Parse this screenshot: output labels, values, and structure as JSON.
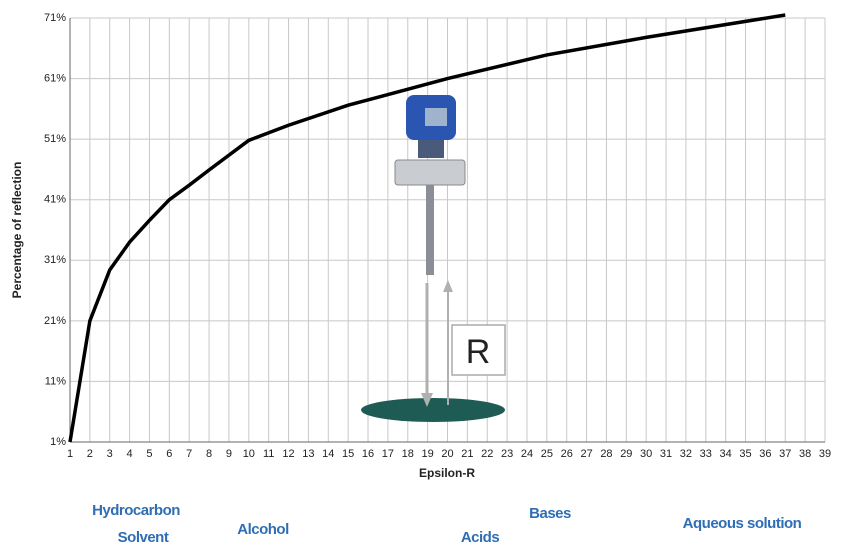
{
  "chart_data": {
    "type": "line",
    "x_label": "Epsilon-R",
    "y_label": "Percentage of reflection",
    "x": [
      1,
      2,
      3,
      4,
      5,
      6,
      7,
      8,
      10,
      12,
      15,
      20,
      25,
      30,
      37
    ],
    "series": [
      {
        "color": "#000000",
        "values": [
          1,
          21,
          29.4,
          34,
          37.6,
          41,
          43.4,
          45.9,
          50.8,
          53.3,
          56.6,
          61,
          64.9,
          67.8,
          71.5
        ]
      }
    ],
    "xlim": [
      1,
      39
    ],
    "xticks": [
      1,
      2,
      3,
      4,
      5,
      6,
      7,
      8,
      9,
      10,
      11,
      12,
      13,
      14,
      15,
      16,
      17,
      18,
      19,
      20,
      21,
      22,
      23,
      24,
      25,
      26,
      27,
      28,
      29,
      30,
      31,
      32,
      33,
      34,
      35,
      36,
      37,
      38,
      39
    ],
    "ylim": [
      1,
      71
    ],
    "yticks": [
      {
        "value": 1,
        "label": "1%"
      },
      {
        "value": 11,
        "label": "11%"
      },
      {
        "value": 21,
        "label": "21%"
      },
      {
        "value": 31,
        "label": "31%"
      },
      {
        "value": 41,
        "label": "41%"
      },
      {
        "value": 51,
        "label": "51%"
      },
      {
        "value": 61,
        "label": "61%"
      },
      {
        "value": 71,
        "label": "71%"
      }
    ],
    "grid": true,
    "diagram_label": "R",
    "annotations": [
      "Hydrocarbon",
      "Solvent",
      "Alcohol",
      "Acids",
      "Bases",
      "Aqueous solution"
    ]
  }
}
